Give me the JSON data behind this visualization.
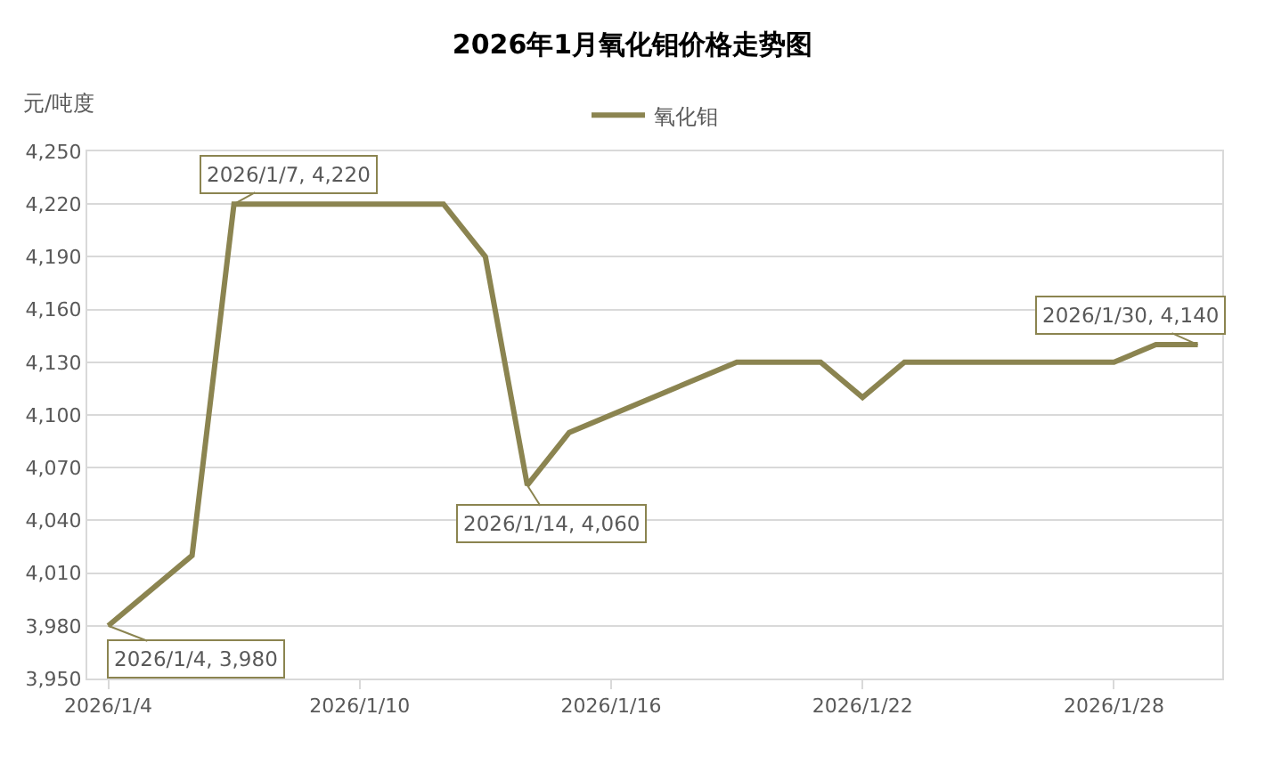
{
  "chart_data": {
    "type": "line",
    "title": "2026年1月氧化钼价格走势图",
    "ylabel": "元/吨度",
    "x": [
      "2026-01-04",
      "2026-01-06",
      "2026-01-07",
      "2026-01-12",
      "2026-01-13",
      "2026-01-14",
      "2026-01-15",
      "2026-01-19",
      "2026-01-21",
      "2026-01-22",
      "2026-01-23",
      "2026-01-28",
      "2026-01-29",
      "2026-01-30"
    ],
    "series": [
      {
        "name": "氧化钼",
        "color": "#8b8450",
        "values": [
          3980,
          4020,
          4220,
          4220,
          4190,
          4060,
          4090,
          4130,
          4130,
          4110,
          4130,
          4130,
          4140,
          4140
        ]
      }
    ],
    "xlim": [
      "2026-01-03T12:00",
      "2026-01-30T14:00"
    ],
    "xticks": [
      {
        "value": "2026-01-04",
        "label": "2026/1/4"
      },
      {
        "value": "2026-01-10",
        "label": "2026/1/10"
      },
      {
        "value": "2026-01-16",
        "label": "2026/1/16"
      },
      {
        "value": "2026-01-22",
        "label": "2026/1/22"
      },
      {
        "value": "2026-01-28",
        "label": "2026/1/28"
      }
    ],
    "ylim": [
      3950,
      4250
    ],
    "yticks": [
      {
        "value": 3950,
        "label": "3,950"
      },
      {
        "value": 3980,
        "label": "3,980"
      },
      {
        "value": 4010,
        "label": "4,010"
      },
      {
        "value": 4040,
        "label": "4,040"
      },
      {
        "value": 4070,
        "label": "4,070"
      },
      {
        "value": 4100,
        "label": "4,100"
      },
      {
        "value": 4130,
        "label": "4,130"
      },
      {
        "value": 4160,
        "label": "4,160"
      },
      {
        "value": 4190,
        "label": "4,190"
      },
      {
        "value": 4220,
        "label": "4,220"
      },
      {
        "value": 4250,
        "label": "4,250"
      }
    ],
    "annotations": [
      {
        "text": "2026/1/7, 4,220",
        "x": "2026-01-07",
        "y": 4220
      },
      {
        "text": "2026/1/14, 4,060",
        "x": "2026-01-14",
        "y": 4060
      },
      {
        "text": "2026/1/4, 3,980",
        "x": "2026-01-04",
        "y": 3980
      },
      {
        "text": "2026/1/30, 4,140",
        "x": "2026-01-30",
        "y": 4140
      }
    ],
    "grid": "y",
    "legend": "top",
    "marker": "none",
    "line_style": "solid"
  }
}
